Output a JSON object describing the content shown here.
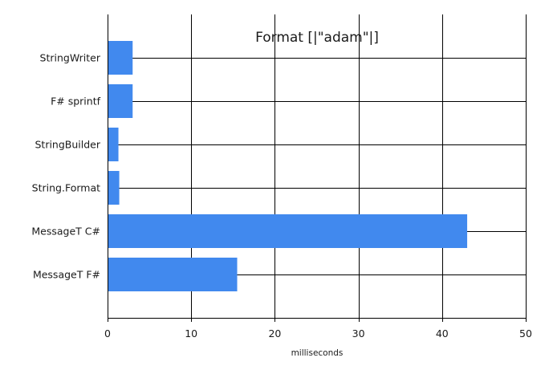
{
  "chart_data": {
    "type": "bar",
    "orientation": "horizontal",
    "title": "Format [|\"adam\"|]",
    "xlabel": "milliseconds",
    "ylabel": "",
    "categories": [
      "StringWriter",
      "F# sprintf",
      "StringBuilder",
      "String.Format",
      "MessageT C#",
      "MessageT F#"
    ],
    "values": [
      3.0,
      3.0,
      1.3,
      1.4,
      43.0,
      15.5
    ],
    "xlim": [
      0,
      50
    ],
    "xticks": [
      0,
      10,
      20,
      30,
      40,
      50
    ],
    "grid": true,
    "legend": "none",
    "colors": {
      "bar": "#4189ee",
      "grid": "#000000",
      "axis": "#000000"
    }
  }
}
